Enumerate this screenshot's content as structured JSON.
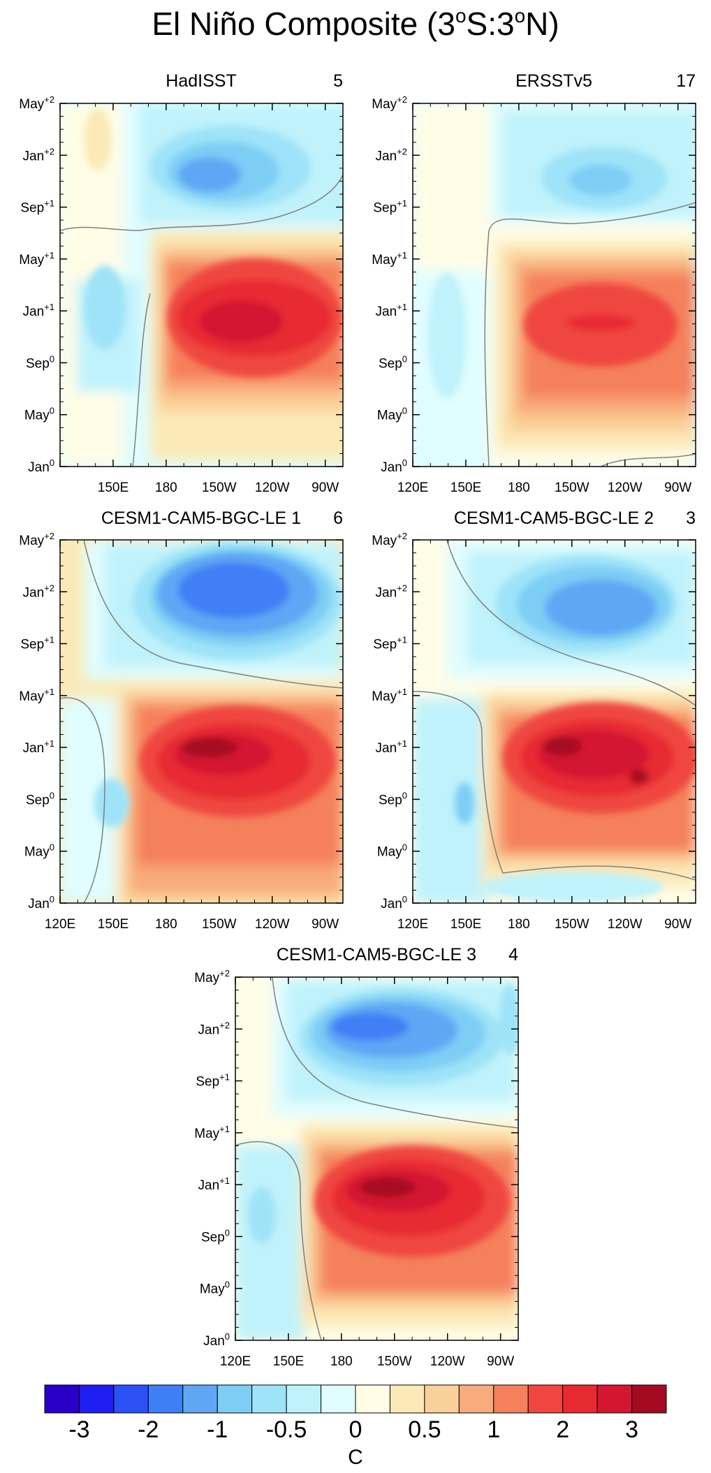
{
  "title": {
    "main": "El Niño Composite (3",
    "s1": "o",
    "mid": "S:3",
    "s2": "o",
    "end": "N)"
  },
  "y_ticks": [
    {
      "base": "Jan",
      "sup": "0"
    },
    {
      "base": "May",
      "sup": "0"
    },
    {
      "base": "Sep",
      "sup": "0"
    },
    {
      "base": "Jan",
      "sup": "+1"
    },
    {
      "base": "May",
      "sup": "+1"
    },
    {
      "base": "Sep",
      "sup": "+1"
    },
    {
      "base": "Jan",
      "sup": "+2"
    },
    {
      "base": "May",
      "sup": "+2"
    }
  ],
  "x_ticks": [
    "120E",
    "150E",
    "180",
    "150W",
    "120W",
    "90W"
  ],
  "colorbar": {
    "colors": [
      "#2a00c8",
      "#1e1ef0",
      "#2b52f5",
      "#3f7ff5",
      "#5fa7f5",
      "#7dcdf5",
      "#9ee3f8",
      "#bff2fb",
      "#e0fdff",
      "#fffde6",
      "#fbeab8",
      "#fad09a",
      "#f8ab7c",
      "#f5805c",
      "#ef473f",
      "#e82a30",
      "#d31730",
      "#a60a22"
    ],
    "labels": [
      "-3",
      "-2",
      "-1",
      "-0.5",
      "0",
      "0.5",
      "1",
      "2",
      "3"
    ],
    "units": "C"
  },
  "panels": [
    {
      "name": "HadISST",
      "count": "5"
    },
    {
      "name": "ERSSTv5",
      "count": "17"
    },
    {
      "name": "CESM1-CAM5-BGC-LE 1",
      "count": "6"
    },
    {
      "name": "CESM1-CAM5-BGC-LE 2",
      "count": "3"
    },
    {
      "name": "CESM1-CAM5-BGC-LE 3",
      "count": "4"
    }
  ],
  "chart_data": [
    {
      "type": "heatmap",
      "title": "HadISST",
      "count": 5,
      "x_axis": "longitude",
      "x_range": [
        "120E",
        "80W"
      ],
      "x_tick_labels": [
        "150E",
        "180",
        "150W",
        "120W",
        "90W"
      ],
      "y_axis": "composite month",
      "y_range": [
        "Jan0",
        "May+2"
      ],
      "y_tick_labels": [
        "Jan0",
        "May0",
        "Sep0",
        "Jan+1",
        "May+1",
        "Sep+1",
        "Jan+2",
        "May+2"
      ],
      "units": "C",
      "warm_peak": {
        "value": 3,
        "lon": "150W-100W",
        "time": "Nov0-Jan+1"
      },
      "cold_peak": {
        "value": -1.5,
        "lon": "170W-130W",
        "time": "Sep+1-Jan+2"
      },
      "zero_contour_transition": "Apr+1"
    },
    {
      "type": "heatmap",
      "title": "ERSSTv5",
      "count": 17,
      "x_axis": "longitude",
      "x_range": [
        "120E",
        "80W"
      ],
      "x_tick_labels": [
        "120E",
        "150E",
        "180",
        "150W",
        "120W",
        "90W"
      ],
      "y_axis": "composite month",
      "y_range": [
        "Jan0",
        "May+2"
      ],
      "y_tick_labels": [
        "Jan0",
        "May0",
        "Sep0",
        "Jan+1",
        "May+1",
        "Sep+1",
        "Jan+2",
        "May+2"
      ],
      "units": "C",
      "warm_peak": {
        "value": 2.5,
        "lon": "160W-120W",
        "time": "Dec0-Jan+1"
      },
      "cold_peak": {
        "value": -1,
        "lon": "150W-120W",
        "time": "Nov+1-Jan+2"
      },
      "zero_contour_transition": "May+1"
    },
    {
      "type": "heatmap",
      "title": "CESM1-CAM5-BGC-LE 1",
      "count": 6,
      "x_axis": "longitude",
      "x_range": [
        "120E",
        "80W"
      ],
      "x_tick_labels": [
        "120E",
        "150E",
        "180",
        "150W",
        "120W",
        "90W"
      ],
      "y_axis": "composite month",
      "y_range": [
        "Jan0",
        "May+2"
      ],
      "y_tick_labels": [
        "Jan0",
        "May0",
        "Sep0",
        "Jan+1",
        "May+1",
        "Sep+1",
        "Jan+2",
        "May+2"
      ],
      "units": "C",
      "warm_peak": {
        "value": 3,
        "lon": "170W-120W",
        "time": "Dec0-Jan+1"
      },
      "cold_peak": {
        "value": -1.5,
        "lon": "170E-110W",
        "time": "Sep+1-May+2"
      },
      "zero_contour_transition": "Jun+1"
    },
    {
      "type": "heatmap",
      "title": "CESM1-CAM5-BGC-LE 2",
      "count": 3,
      "x_axis": "longitude",
      "x_range": [
        "120E",
        "80W"
      ],
      "x_tick_labels": [
        "120E",
        "150E",
        "180",
        "150W",
        "120W",
        "90W"
      ],
      "y_axis": "composite month",
      "y_range": [
        "Jan0",
        "May+2"
      ],
      "y_tick_labels": [
        "Jan0",
        "May0",
        "Sep0",
        "Jan+1",
        "May+1",
        "Sep+1",
        "Jan+2",
        "May+2"
      ],
      "units": "C",
      "warm_peak": {
        "value": 3,
        "lon": "160W-110W",
        "time": "Nov0-Jan+1"
      },
      "cold_peak": {
        "value": -1.5,
        "lon": "150W-100W",
        "time": "Sep+1-Mar+2"
      },
      "zero_contour_transition": "Jul+1"
    },
    {
      "type": "heatmap",
      "title": "CESM1-CAM5-BGC-LE 3",
      "count": 4,
      "x_axis": "longitude",
      "x_range": [
        "120E",
        "80W"
      ],
      "x_tick_labels": [
        "120E",
        "150E",
        "180",
        "150W",
        "120W",
        "90W"
      ],
      "y_axis": "composite month",
      "y_range": [
        "Jan0",
        "May+2"
      ],
      "y_tick_labels": [
        "Jan0",
        "May0",
        "Sep0",
        "Jan+1",
        "May+1",
        "Sep+1",
        "Jan+2",
        "May+2"
      ],
      "units": "C",
      "warm_peak": {
        "value": 3,
        "lon": "170W-130W",
        "time": "Dec0-Jan+1"
      },
      "cold_peak": {
        "value": -1.5,
        "lon": "170E-100W",
        "time": "Oct+1-Apr+2"
      },
      "zero_contour_transition": "Jun+1"
    }
  ]
}
